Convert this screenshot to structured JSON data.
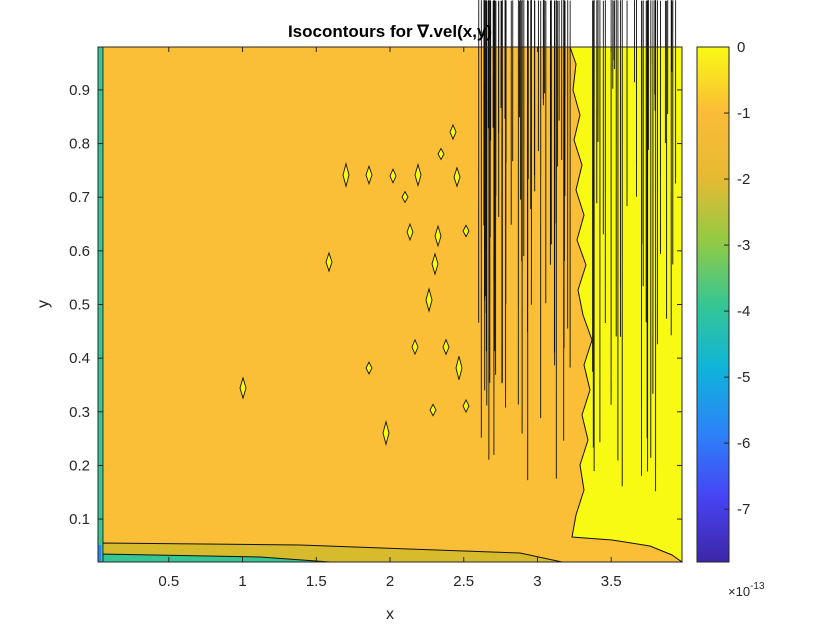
{
  "chart_data": {
    "type": "contour",
    "title": "Isocontours for ∇.vel(x,y)",
    "xlabel": "x",
    "ylabel": "y",
    "x_ticks": [
      "0.5",
      "1",
      "1.5",
      "2",
      "2.5",
      "3",
      "3.5"
    ],
    "x_tick_values": [
      0.5,
      1,
      1.5,
      2,
      2.5,
      3,
      3.5
    ],
    "y_ticks": [
      "0.1",
      "0.2",
      "0.3",
      "0.4",
      "0.5",
      "0.6",
      "0.7",
      "0.8",
      "0.9"
    ],
    "y_tick_values": [
      0.1,
      0.2,
      0.3,
      0.4,
      0.5,
      0.6,
      0.7,
      0.8,
      0.9
    ],
    "xlim": [
      0.02,
      3.98
    ],
    "ylim": [
      0.02,
      0.98
    ],
    "colorbar": {
      "ticks": [
        "0",
        "-1",
        "-2",
        "-3",
        "-4",
        "-5",
        "-6",
        "-7"
      ],
      "tick_values": [
        0,
        -1,
        -2,
        -3,
        -4,
        -5,
        -6,
        -7
      ],
      "range": [
        -7.8,
        0
      ],
      "exponent_base": "×10",
      "exponent_power": "-13",
      "colormap_stops": [
        "#3e26a8",
        "#4743f4",
        "#2c82f8",
        "#0fb3da",
        "#35c693",
        "#94ca42",
        "#e7ba32",
        "#fbbc37",
        "#f9fa14"
      ]
    },
    "levels": [
      {
        "range": [
          -1,
          0
        ],
        "color": "#f9fa14",
        "region": "right side x > 3.25 and scattered cells for x 2.5-3.25"
      },
      {
        "range": [
          -1.5,
          -1
        ],
        "color": "#fbbc37",
        "region": "bulk of domain"
      },
      {
        "range": [
          -2,
          -1.5
        ],
        "color": "#d7bb2c",
        "region": "thin band near y = 0.03"
      },
      {
        "range": [
          -7.8,
          -2
        ],
        "color": "#35c693",
        "region": "boundary x = 0 and corner"
      }
    ]
  }
}
